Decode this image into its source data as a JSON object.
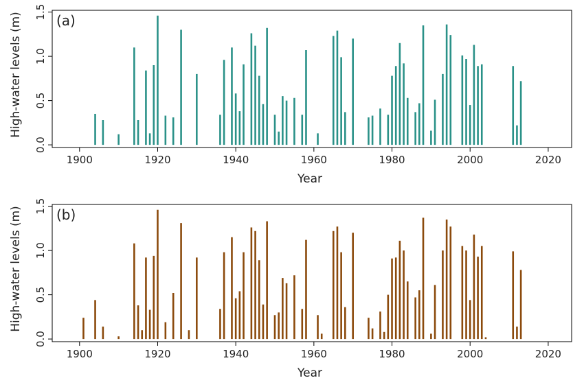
{
  "chart_data": [
    {
      "type": "bar",
      "panel_label": "(a)",
      "xlabel": "Year",
      "ylabel": "High-water levels (m)",
      "xlim": [
        1893,
        2026
      ],
      "ylim": [
        -0.03,
        1.52
      ],
      "xticks": [
        1900,
        1920,
        1940,
        1960,
        1980,
        2000,
        2020
      ],
      "yticks": [
        0.0,
        0.5,
        1.0,
        1.5
      ],
      "ytick_labels": [
        "0.0",
        "0.5",
        "1.0",
        "1.5"
      ],
      "color": "#2a9188",
      "x": [
        1904,
        1906,
        1910,
        1914,
        1915,
        1917,
        1918,
        1919,
        1920,
        1922,
        1924,
        1926,
        1930,
        1936,
        1937,
        1939,
        1940,
        1941,
        1942,
        1944,
        1945,
        1946,
        1947,
        1948,
        1950,
        1951,
        1952,
        1953,
        1955,
        1957,
        1958,
        1961,
        1965,
        1966,
        1967,
        1968,
        1970,
        1974,
        1975,
        1977,
        1979,
        1980,
        1981,
        1982,
        1983,
        1984,
        1986,
        1987,
        1988,
        1990,
        1991,
        1993,
        1994,
        1995,
        1998,
        1999,
        2000,
        2001,
        2002,
        2003,
        2011,
        2012,
        2013
      ],
      "values": [
        0.35,
        0.28,
        0.12,
        1.1,
        0.28,
        0.84,
        0.13,
        0.9,
        1.46,
        0.33,
        0.31,
        1.3,
        0.8,
        0.34,
        0.96,
        1.1,
        0.58,
        0.38,
        0.91,
        1.26,
        1.12,
        0.78,
        0.46,
        1.32,
        0.34,
        0.15,
        0.55,
        0.5,
        0.53,
        0.34,
        1.07,
        0.13,
        1.23,
        1.29,
        0.99,
        0.37,
        1.2,
        0.31,
        0.33,
        0.41,
        0.34,
        0.78,
        0.89,
        1.15,
        0.92,
        0.53,
        0.37,
        0.47,
        1.35,
        0.16,
        0.51,
        0.8,
        1.36,
        1.24,
        1.01,
        0.97,
        0.45,
        1.13,
        0.89,
        0.91,
        0.89,
        0.22,
        0.72
      ]
    },
    {
      "type": "bar",
      "panel_label": "(b)",
      "xlabel": "Year",
      "ylabel": "High-water levels (m)",
      "xlim": [
        1893,
        2026
      ],
      "ylim": [
        -0.03,
        1.52
      ],
      "xticks": [
        1900,
        1920,
        1940,
        1960,
        1980,
        2000,
        2020
      ],
      "yticks": [
        0.0,
        0.5,
        1.0,
        1.5
      ],
      "ytick_labels": [
        "0.0",
        "0.5",
        "1.0",
        "1.5"
      ],
      "color": "#8b4a0c",
      "x": [
        1901,
        1904,
        1906,
        1910,
        1914,
        1915,
        1916,
        1917,
        1918,
        1919,
        1920,
        1922,
        1924,
        1926,
        1928,
        1930,
        1936,
        1937,
        1939,
        1940,
        1941,
        1942,
        1944,
        1945,
        1946,
        1947,
        1948,
        1950,
        1951,
        1952,
        1953,
        1955,
        1957,
        1958,
        1961,
        1962,
        1965,
        1966,
        1967,
        1968,
        1970,
        1974,
        1975,
        1977,
        1978,
        1979,
        1980,
        1981,
        1982,
        1983,
        1984,
        1986,
        1987,
        1988,
        1990,
        1991,
        1993,
        1994,
        1995,
        1998,
        1999,
        2000,
        2001,
        2002,
        2003,
        2004,
        2011,
        2012,
        2013
      ],
      "values": [
        0.24,
        0.44,
        0.14,
        0.03,
        1.08,
        0.38,
        0.1,
        0.92,
        0.33,
        0.94,
        1.46,
        0.19,
        0.52,
        1.31,
        0.1,
        0.92,
        0.34,
        0.98,
        1.15,
        0.46,
        0.54,
        0.98,
        1.26,
        1.22,
        0.89,
        0.39,
        1.33,
        0.27,
        0.3,
        0.69,
        0.63,
        0.72,
        0.34,
        1.12,
        0.27,
        0.06,
        1.22,
        1.27,
        0.98,
        0.36,
        1.2,
        0.24,
        0.12,
        0.31,
        0.08,
        0.5,
        0.91,
        0.92,
        1.11,
        1.0,
        0.65,
        0.47,
        0.55,
        1.37,
        0.06,
        0.61,
        1.0,
        1.35,
        1.27,
        1.05,
        1.0,
        0.44,
        1.18,
        0.93,
        1.05,
        0.02,
        0.99,
        0.14,
        0.78
      ]
    }
  ]
}
